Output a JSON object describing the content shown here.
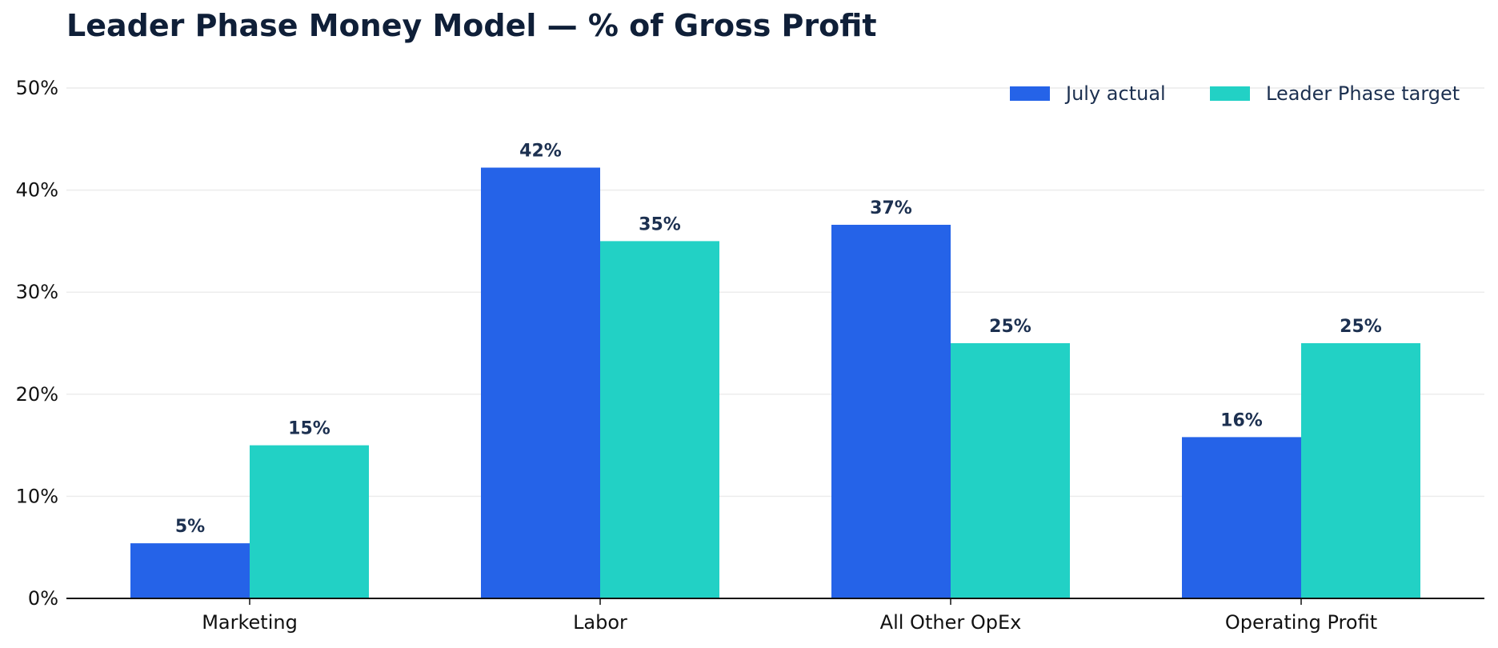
{
  "chart_data": {
    "type": "bar",
    "title": "Leader Phase Money Model — % of Gross Profit",
    "xlabel": "",
    "ylabel": "",
    "categories": [
      "Marketing",
      "Labor",
      "All Other OpEx",
      "Operating Profit"
    ],
    "series": [
      {
        "name": "July actual",
        "color": "#2563e8",
        "values": [
          5.4,
          42.2,
          36.6,
          15.8
        ],
        "labels": [
          "5%",
          "42%",
          "37%",
          "16%"
        ]
      },
      {
        "name": "Leader Phase target",
        "color": "#22d1c5",
        "values": [
          15,
          35,
          25,
          25
        ],
        "labels": [
          "15%",
          "35%",
          "25%",
          "25%"
        ]
      }
    ],
    "ylim": [
      0,
      50
    ],
    "yticks": [
      0,
      10,
      20,
      30,
      40,
      50
    ],
    "ytick_labels": [
      "0%",
      "10%",
      "20%",
      "30%",
      "40%",
      "50%"
    ],
    "grid": true,
    "legend_position": "top-right"
  }
}
